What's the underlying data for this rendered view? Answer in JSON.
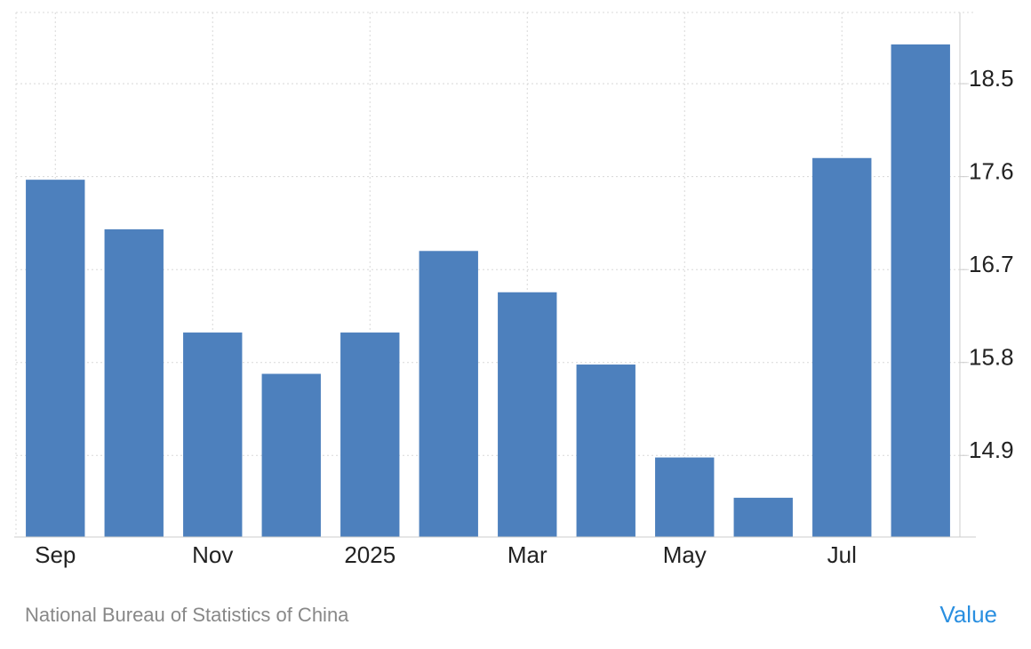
{
  "chart_data": {
    "type": "bar",
    "categories": [
      "Sep",
      null,
      "Nov",
      null,
      "2025",
      null,
      "Mar",
      null,
      "May",
      null,
      "Jul",
      null
    ],
    "values": [
      17.57,
      17.09,
      16.09,
      15.69,
      16.09,
      16.88,
      16.48,
      15.78,
      14.88,
      14.49,
      17.78,
      18.88
    ],
    "color": "#4d80bd",
    "ylim": [
      14.11,
      19.19
    ],
    "yticks": [
      14.9,
      15.8,
      16.7,
      17.6,
      18.5
    ],
    "grid": true,
    "source": "National Bureau of Statistics of China",
    "link": "Value"
  }
}
